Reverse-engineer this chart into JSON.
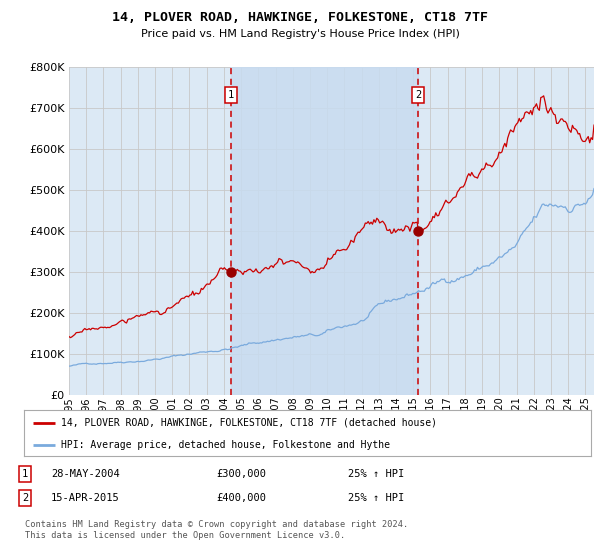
{
  "title": "14, PLOVER ROAD, HAWKINGE, FOLKESTONE, CT18 7TF",
  "subtitle": "Price paid vs. HM Land Registry's House Price Index (HPI)",
  "background_color": "#ffffff",
  "plot_bg_color": "#dce9f5",
  "grid_color": "#c8c8c8",
  "x_start": 1995.0,
  "x_end": 2025.5,
  "y_min": 0,
  "y_max": 800000,
  "y_ticks": [
    0,
    100000,
    200000,
    300000,
    400000,
    500000,
    600000,
    700000,
    800000
  ],
  "y_tick_labels": [
    "£0",
    "£100K",
    "£200K",
    "£300K",
    "£400K",
    "£500K",
    "£600K",
    "£700K",
    "£800K"
  ],
  "sale1_x": 2004.41,
  "sale1_y": 300000,
  "sale1_label": "1",
  "sale2_x": 2015.29,
  "sale2_y": 400000,
  "sale2_label": "2",
  "red_line_color": "#cc0000",
  "blue_line_color": "#7aaadd",
  "sale_marker_color": "#990000",
  "vline_color": "#cc0000",
  "shaded_region_color": "#c8dcf0",
  "legend_red_label": "14, PLOVER ROAD, HAWKINGE, FOLKESTONE, CT18 7TF (detached house)",
  "legend_blue_label": "HPI: Average price, detached house, Folkestone and Hythe",
  "table_row1": [
    "1",
    "28-MAY-2004",
    "£300,000",
    "25% ↑ HPI"
  ],
  "table_row2": [
    "2",
    "15-APR-2015",
    "£400,000",
    "25% ↑ HPI"
  ],
  "footer": "Contains HM Land Registry data © Crown copyright and database right 2024.\nThis data is licensed under the Open Government Licence v3.0.",
  "x_tick_years": [
    1995,
    1996,
    1997,
    1998,
    1999,
    2000,
    2001,
    2002,
    2003,
    2004,
    2005,
    2006,
    2007,
    2008,
    2009,
    2010,
    2011,
    2012,
    2013,
    2014,
    2015,
    2016,
    2017,
    2018,
    2019,
    2020,
    2021,
    2022,
    2023,
    2024,
    2025
  ]
}
